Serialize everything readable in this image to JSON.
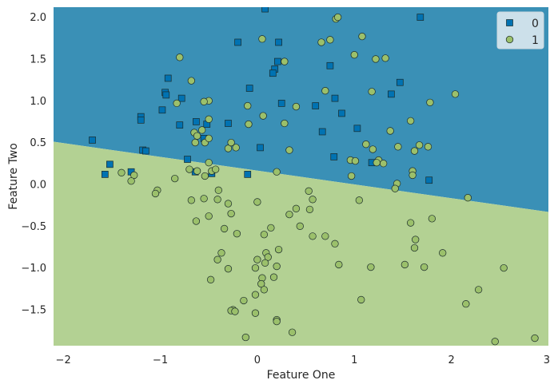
{
  "chart_data": {
    "type": "scatter",
    "title": "",
    "xlabel": "Feature One",
    "ylabel": "Feature Two",
    "xlim": [
      -2.1,
      3.0
    ],
    "ylim": [
      -1.93,
      2.12
    ],
    "xticks": [
      -2,
      -1,
      0,
      1,
      2,
      3
    ],
    "xtick_labels": [
      "−2",
      "−1",
      "0",
      "1",
      "2",
      "3"
    ],
    "yticks": [
      -1.5,
      -1.0,
      -0.5,
      0.0,
      0.5,
      1.0,
      1.5,
      2.0
    ],
    "ytick_labels": [
      "−1.5",
      "−1.0",
      "−0.5",
      "0.0",
      "0.5",
      "1.0",
      "1.5",
      "2.0"
    ],
    "grid": false,
    "legend_position": "top-right",
    "decision_boundary": {
      "x": [
        -2.1,
        3.0
      ],
      "y": [
        0.51,
        -0.33
      ],
      "region_above": "0",
      "region_below": "1"
    },
    "colors": {
      "class0": "#0072b2",
      "class1": "#9bc06b",
      "region0": "#3a90b6",
      "region1": "#b3d193",
      "marker_edge": "#1a2a2a"
    },
    "series": [
      {
        "name": "0",
        "marker": "square",
        "points": [
          [
            0.08,
            2.1
          ],
          [
            1.68,
            2.0
          ],
          [
            -0.2,
            1.7
          ],
          [
            0.22,
            1.7
          ],
          [
            0.21,
            1.47
          ],
          [
            0.18,
            1.38
          ],
          [
            0.16,
            1.33
          ],
          [
            -0.08,
            1.15
          ],
          [
            0.25,
            0.97
          ],
          [
            0.75,
            1.42
          ],
          [
            1.47,
            1.22
          ],
          [
            1.38,
            1.08
          ],
          [
            0.6,
            0.94
          ],
          [
            0.8,
            1.03
          ],
          [
            0.87,
            0.85
          ],
          [
            -0.92,
            1.27
          ],
          [
            -0.95,
            1.1
          ],
          [
            -0.94,
            1.07
          ],
          [
            -0.98,
            0.89
          ],
          [
            -0.78,
            1.03
          ],
          [
            -1.2,
            0.81
          ],
          [
            -1.2,
            0.77
          ],
          [
            -0.63,
            0.75
          ],
          [
            -0.52,
            0.72
          ],
          [
            -0.3,
            0.73
          ],
          [
            -0.8,
            0.71
          ],
          [
            -1.7,
            0.53
          ],
          [
            -0.55,
            0.55
          ],
          [
            -1.18,
            0.41
          ],
          [
            -1.15,
            0.4
          ],
          [
            -0.72,
            0.3
          ],
          [
            0.03,
            0.44
          ],
          [
            0.67,
            0.63
          ],
          [
            1.03,
            0.67
          ],
          [
            0.79,
            0.33
          ],
          [
            1.18,
            0.26
          ],
          [
            1.77,
            0.05
          ],
          [
            -0.47,
            0.13
          ],
          [
            -0.64,
            0.15
          ],
          [
            -0.1,
            0.12
          ],
          [
            -1.52,
            0.24
          ],
          [
            -1.57,
            0.12
          ],
          [
            -1.3,
            0.15
          ]
        ]
      },
      {
        "name": "1",
        "marker": "circle",
        "points": [
          [
            0.81,
            1.98
          ],
          [
            0.83,
            2.0
          ],
          [
            1.08,
            1.77
          ],
          [
            0.66,
            1.7
          ],
          [
            0.05,
            1.74
          ],
          [
            0.75,
            1.73
          ],
          [
            1.0,
            1.55
          ],
          [
            1.22,
            1.5
          ],
          [
            1.32,
            1.51
          ],
          [
            0.28,
            1.47
          ],
          [
            -0.8,
            1.52
          ],
          [
            -0.68,
            1.24
          ],
          [
            2.04,
            1.08
          ],
          [
            1.78,
            0.98
          ],
          [
            -0.5,
            1.0
          ],
          [
            -0.55,
            0.99
          ],
          [
            -0.1,
            0.94
          ],
          [
            0.4,
            0.93
          ],
          [
            -0.83,
            0.97
          ],
          [
            0.06,
            0.82
          ],
          [
            1.18,
            1.11
          ],
          [
            0.7,
            1.12
          ],
          [
            1.58,
            0.76
          ],
          [
            0.28,
            0.73
          ],
          [
            -0.5,
            0.78
          ],
          [
            -0.57,
            0.65
          ],
          [
            -0.65,
            0.62
          ],
          [
            1.37,
            0.64
          ],
          [
            -0.64,
            0.5
          ],
          [
            -0.09,
            0.72
          ],
          [
            -0.54,
            0.5
          ],
          [
            -0.5,
            0.55
          ],
          [
            -0.62,
            0.58
          ],
          [
            -0.3,
            0.43
          ],
          [
            -0.22,
            0.44
          ],
          [
            -0.27,
            0.5
          ],
          [
            1.12,
            0.48
          ],
          [
            1.45,
            0.45
          ],
          [
            1.62,
            0.4
          ],
          [
            1.76,
            0.45
          ],
          [
            1.67,
            0.47
          ],
          [
            1.19,
            0.42
          ],
          [
            0.33,
            0.41
          ],
          [
            0.96,
            0.29
          ],
          [
            1.01,
            0.28
          ],
          [
            1.25,
            0.29
          ],
          [
            1.3,
            0.25
          ],
          [
            1.23,
            0.26
          ],
          [
            -0.7,
            0.18
          ],
          [
            -0.62,
            0.16
          ],
          [
            -0.5,
            0.26
          ],
          [
            -0.47,
            0.16
          ],
          [
            -0.54,
            0.1
          ],
          [
            -0.43,
            0.18
          ],
          [
            0.2,
            0.15
          ],
          [
            1.6,
            0.16
          ],
          [
            1.6,
            0.11
          ],
          [
            0.97,
            0.1
          ],
          [
            1.44,
            0.01
          ],
          [
            1.42,
            -0.05
          ],
          [
            2.17,
            -0.16
          ],
          [
            -1.4,
            0.14
          ],
          [
            -1.27,
            0.11
          ],
          [
            -1.3,
            0.04
          ],
          [
            -0.85,
            0.07
          ],
          [
            -1.03,
            -0.07
          ],
          [
            -1.05,
            -0.11
          ],
          [
            -0.68,
            -0.19
          ],
          [
            -0.55,
            -0.17
          ],
          [
            -0.41,
            -0.18
          ],
          [
            -0.4,
            -0.07
          ],
          [
            -0.3,
            -0.23
          ],
          [
            -0.27,
            -0.35
          ],
          [
            0.0,
            -0.21
          ],
          [
            0.53,
            -0.08
          ],
          [
            0.57,
            -0.18
          ],
          [
            0.54,
            -0.3
          ],
          [
            0.33,
            -0.36
          ],
          [
            0.4,
            -0.29
          ],
          [
            0.44,
            -0.5
          ],
          [
            1.05,
            -0.19
          ],
          [
            1.58,
            -0.46
          ],
          [
            1.8,
            -0.41
          ],
          [
            1.63,
            -0.66
          ],
          [
            1.62,
            -0.76
          ],
          [
            1.91,
            -0.82
          ],
          [
            1.72,
            -0.99
          ],
          [
            1.52,
            -0.96
          ],
          [
            1.17,
            -0.99
          ],
          [
            0.8,
            -0.71
          ],
          [
            0.57,
            -0.62
          ],
          [
            0.7,
            -0.62
          ],
          [
            0.84,
            -0.96
          ],
          [
            0.22,
            -0.78
          ],
          [
            0.07,
            -0.6
          ],
          [
            0.09,
            -0.82
          ],
          [
            0.11,
            -0.87
          ],
          [
            0.0,
            -0.9
          ],
          [
            0.08,
            -0.94
          ],
          [
            -0.02,
            -1.0
          ],
          [
            0.2,
            -0.98
          ],
          [
            -0.37,
            -0.82
          ],
          [
            -0.3,
            -1.01
          ],
          [
            -0.48,
            -1.14
          ],
          [
            -0.34,
            -0.53
          ],
          [
            -0.63,
            -0.44
          ],
          [
            -0.41,
            -0.9
          ],
          [
            -0.21,
            -0.59
          ],
          [
            -0.5,
            -0.38
          ],
          [
            0.14,
            -0.52
          ],
          [
            0.05,
            -1.12
          ],
          [
            0.04,
            -1.19
          ],
          [
            0.17,
            -1.11
          ],
          [
            0.07,
            -1.26
          ],
          [
            -0.02,
            -1.32
          ],
          [
            -0.14,
            -1.39
          ],
          [
            0.2,
            -1.62
          ],
          [
            0.2,
            -1.64
          ],
          [
            -0.25,
            -1.5
          ],
          [
            -0.27,
            -1.51
          ],
          [
            -0.02,
            -1.54
          ],
          [
            0.36,
            -1.77
          ],
          [
            -0.12,
            -1.83
          ],
          [
            1.07,
            -1.38
          ],
          [
            2.15,
            -1.43
          ],
          [
            2.28,
            -1.26
          ],
          [
            2.54,
            -1.0
          ],
          [
            2.45,
            -1.88
          ],
          [
            2.86,
            -1.84
          ],
          [
            -0.23,
            -1.52
          ]
        ]
      }
    ]
  }
}
